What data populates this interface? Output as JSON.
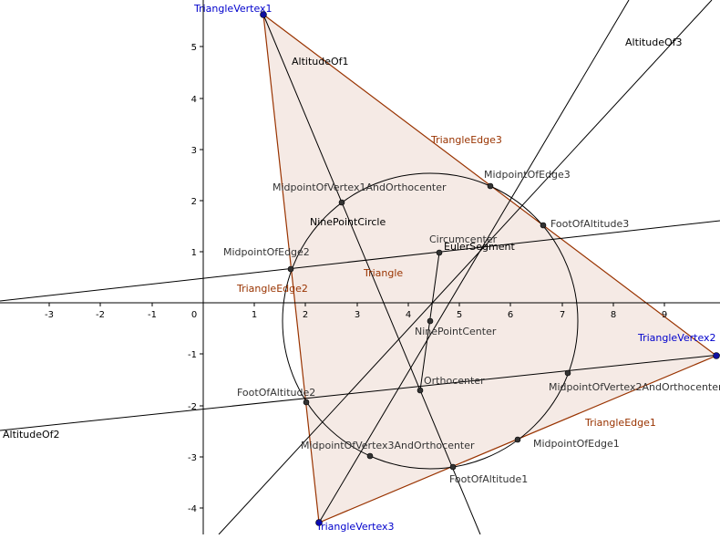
{
  "axes": {
    "x_ticks": [
      "-3",
      "-2",
      "-1",
      "0",
      "1",
      "2",
      "3",
      "4",
      "5",
      "6",
      "7",
      "8",
      "9"
    ],
    "y_ticks": [
      "5",
      "4",
      "3",
      "2",
      "1",
      "-1",
      "-2",
      "-3",
      "-4"
    ]
  },
  "colors": {
    "triangle_stroke": "#993300",
    "triangle_label": "#993300",
    "vertex": "#0000cc",
    "point_label": "#333333",
    "line_label": "#000000"
  },
  "labels": {
    "vertex1": "TriangleVertex1",
    "vertex2": "TriangleVertex2",
    "vertex3": "TriangleVertex3",
    "edge1": "TriangleEdge1",
    "edge2": "TriangleEdge2",
    "edge3": "TriangleEdge3",
    "triangle": "Triangle",
    "altitude1": "AltitudeOf1",
    "altitude2": "AltitudeOf2",
    "altitude3": "AltitudeOf3",
    "nine_point_circle": "NinePointCircle",
    "euler_segment": "EulerSegment",
    "circumcenter": "Circumcenter",
    "nine_point_center": "NinePointCenter",
    "orthocenter": "Orthocenter",
    "midpoint_edge1": "MidpointOfEdge1",
    "midpoint_edge2": "MidpointOfEdge2",
    "midpoint_edge3": "MidpointOfEdge3",
    "foot_altitude1": "FootOfAltitude1",
    "foot_altitude2": "FootOfAltitude2",
    "foot_altitude3": "FootOfAltitude3",
    "midpoint_v1_ortho": "MidpointOfVertex1AndOrthocenter",
    "midpoint_v2_ortho": "MidpointOfVertex2AndOrthocenter",
    "midpoint_v3_ortho": "MidpointOfVertex3AndOrthocenter"
  }
}
